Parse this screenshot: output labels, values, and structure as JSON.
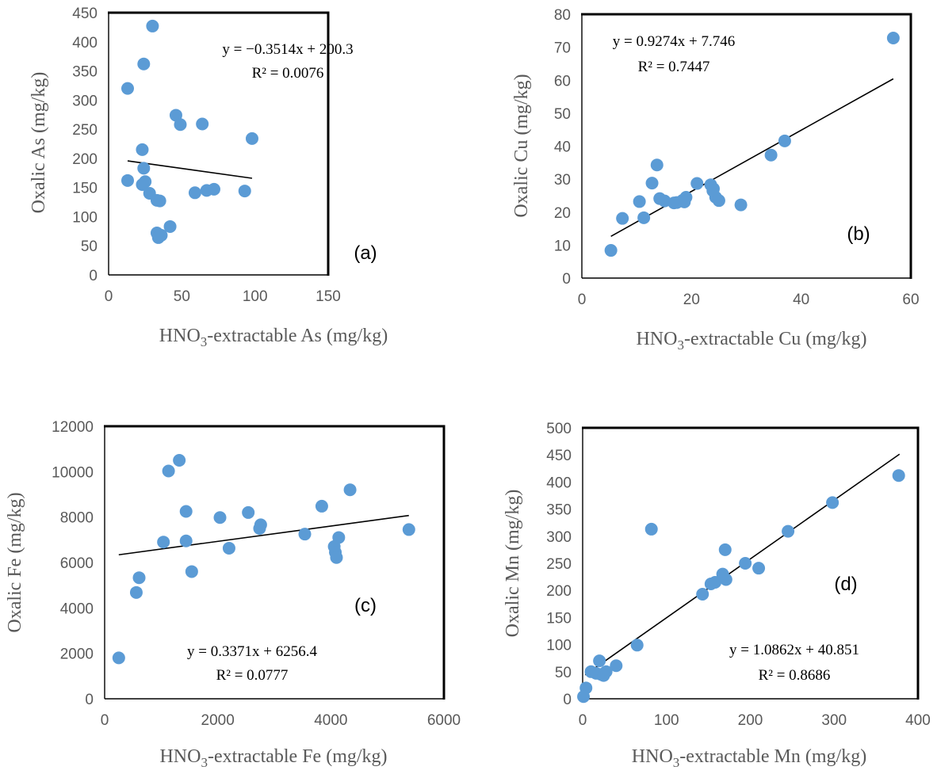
{
  "chart_data": [
    {
      "id": "a",
      "type": "scatter",
      "panel_label": "(a)",
      "xlabel": {
        "pre": "HNO",
        "sub": "3",
        "post": "-extractable As (mg/kg)"
      },
      "ylabel": "Oxalic As (mg/kg)",
      "xlim": [
        0,
        150
      ],
      "ylim": [
        0,
        450
      ],
      "xticks": [
        0,
        50,
        100,
        150
      ],
      "yticks": [
        0,
        50,
        100,
        150,
        200,
        250,
        300,
        350,
        400,
        450
      ],
      "equation": "y = −0.3514x + 200.3",
      "r2": "R² = 0.0076",
      "trendline": {
        "slope": -0.3514,
        "intercept": 200.3,
        "x_range": [
          13,
          98
        ]
      },
      "x": [
        30,
        24,
        13,
        46,
        49,
        64,
        98,
        23,
        24,
        13,
        25,
        23,
        28,
        33,
        35,
        59,
        67,
        72,
        93,
        42,
        33,
        34,
        36
      ],
      "y": [
        427,
        362,
        320,
        274,
        258,
        259,
        234,
        215,
        183,
        162,
        160,
        155,
        140,
        128,
        127,
        141,
        145,
        147,
        144,
        83,
        72,
        64,
        68
      ],
      "grid": false,
      "color": "#5b9bd5"
    },
    {
      "id": "b",
      "type": "scatter",
      "panel_label": "(b)",
      "xlabel": {
        "pre": "HNO",
        "sub": "3",
        "post": "-extractable Cu (mg/kg)"
      },
      "ylabel": "Oxalic Cu (mg/kg)",
      "xlim": [
        0,
        60
      ],
      "ylim": [
        0,
        80
      ],
      "xticks": [
        0,
        20,
        40,
        60
      ],
      "yticks": [
        0,
        10,
        20,
        30,
        40,
        50,
        60,
        70,
        80
      ],
      "equation": "y = 0.9274x + 7.746",
      "r2": "R² = 0.7447",
      "trendline": {
        "slope": 0.9274,
        "intercept": 7.746,
        "x_range": [
          5.3,
          56.8
        ]
      },
      "x": [
        56.8,
        37,
        34.5,
        13.7,
        12.8,
        21,
        23.5,
        24,
        24.4,
        23.9,
        25,
        29,
        14.2,
        15.1,
        10.5,
        7.4,
        11.3,
        16.8,
        18.4,
        17.3,
        19,
        5.3,
        18.7
      ],
      "y": [
        72.8,
        41.6,
        37.3,
        34.3,
        28.8,
        28.7,
        28.3,
        27.1,
        24.5,
        26.5,
        23.5,
        22.2,
        24.1,
        23.4,
        23.2,
        18.1,
        18.3,
        22.8,
        23.6,
        22.9,
        24.5,
        8.4,
        23.1
      ],
      "grid": false,
      "color": "#5b9bd5"
    },
    {
      "id": "c",
      "type": "scatter",
      "panel_label": "(c)",
      "xlabel": {
        "pre": "HNO",
        "sub": "3",
        "post": "-extractable Fe (mg/kg)"
      },
      "ylabel": "Oxalic Fe (mg/kg)",
      "xlim": [
        0,
        6000
      ],
      "ylim": [
        0,
        12000
      ],
      "xticks": [
        0,
        2000,
        4000,
        6000
      ],
      "yticks": [
        0,
        2000,
        4000,
        6000,
        8000,
        10000,
        12000
      ],
      "equation": "y = 0.3371x + 6256.4",
      "r2": "R² = 0.0777",
      "trendline": {
        "slope": 0.3371,
        "intercept": 6256.4,
        "x_range": [
          250,
          5380
        ]
      },
      "x": [
        1320,
        1130,
        4340,
        3840,
        1440,
        2540,
        2040,
        2760,
        2740,
        3540,
        5380,
        4140,
        1040,
        1440,
        2200,
        4060,
        4080,
        4100,
        1540,
        610,
        560,
        250
      ],
      "y": [
        10500,
        10030,
        9200,
        8480,
        8250,
        8200,
        7980,
        7660,
        7500,
        7250,
        7450,
        7100,
        6900,
        6950,
        6630,
        6700,
        6450,
        6220,
        5600,
        5330,
        4680,
        1800
      ],
      "grid": false,
      "color": "#5b9bd5"
    },
    {
      "id": "d",
      "type": "scatter",
      "panel_label": "(d)",
      "xlabel": {
        "pre": "HNO",
        "sub": "3",
        "post": "-extractable Mn (mg/kg)"
      },
      "ylabel": "Oxalic Mn (mg/kg)",
      "xlim": [
        0,
        400
      ],
      "ylim": [
        0,
        500
      ],
      "xticks": [
        0,
        100,
        200,
        300,
        400
      ],
      "yticks": [
        0,
        50,
        100,
        150,
        200,
        250,
        300,
        350,
        400,
        450,
        500
      ],
      "equation": "y = 1.0862x + 40.851",
      "r2": "R² = 0.8686",
      "trendline": {
        "slope": 1.0862,
        "intercept": 40.851,
        "x_range": [
          3,
          378
        ]
      },
      "x": [
        377,
        298,
        82,
        245,
        170,
        194,
        210,
        167,
        158,
        171,
        153,
        143,
        65,
        40,
        20,
        28,
        22,
        10,
        16,
        25,
        4,
        1
      ],
      "y": [
        412,
        362,
        313,
        309,
        275,
        250,
        241,
        230,
        215,
        220,
        212,
        193,
        99,
        61,
        70,
        50,
        45,
        50,
        47,
        43,
        20,
        4
      ],
      "grid": false,
      "color": "#5b9bd5"
    }
  ]
}
